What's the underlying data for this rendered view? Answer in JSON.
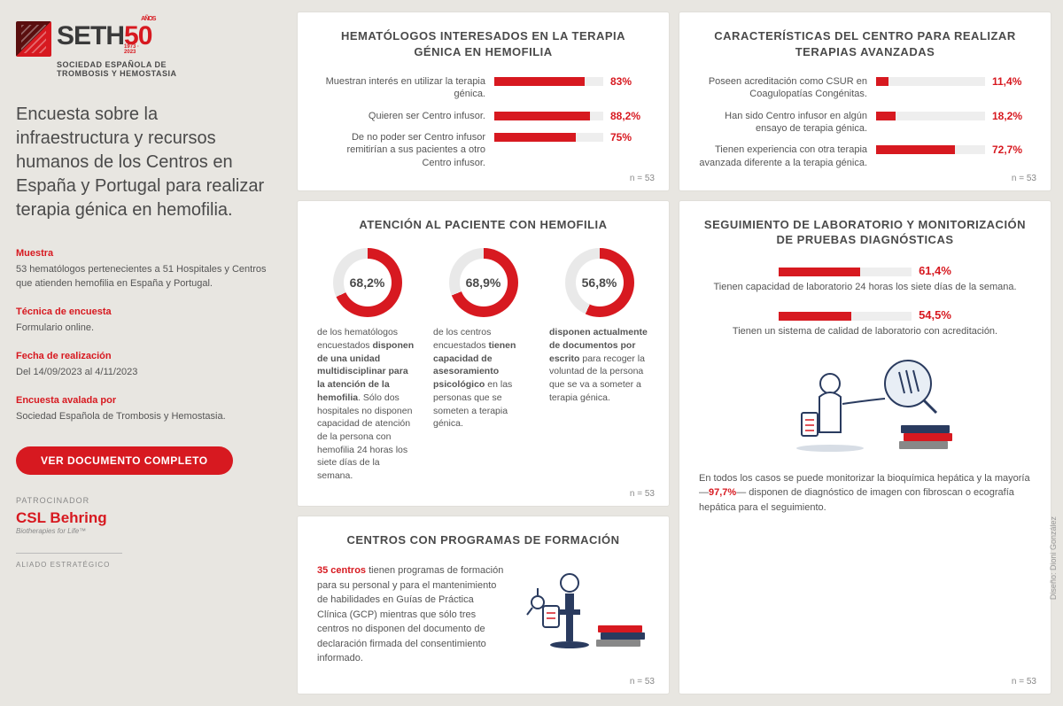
{
  "brand": {
    "name": "SETH",
    "fifty": "50",
    "anos": "AÑOS",
    "years": "1973 · 2023",
    "subtitle": "SOCIEDAD ESPAÑOLA DE\nTROMBOSIS Y HEMOSTASIA"
  },
  "sidebar": {
    "title": "Encuesta sobre la infraestructura y recursos humanos de los Centros en España y Portugal para realizar terapia génica en hemofilia.",
    "meta": [
      {
        "label": "Muestra",
        "value": "53 hematólogos pertenecientes a 51 Hospitales y Centros que atienden hemofilia en España y Portugal."
      },
      {
        "label": "Técnica de encuesta",
        "value": "Formulario online."
      },
      {
        "label": "Fecha de realización",
        "value": "Del 14/09/2023 al 4/11/2023"
      },
      {
        "label": "Encuesta avalada por",
        "value": "Sociedad Española de Trombosis y Hemostasia."
      }
    ],
    "cta": "VER DOCUMENTO COMPLETO",
    "sponsor_label": "PATROCINADOR",
    "sponsor_name": "CSL Behring",
    "sponsor_tag": "Biotherapies for Life™",
    "ally_label": "ALIADO ESTRATÉGICO"
  },
  "panels": {
    "hematologos": {
      "title": "HEMATÓLOGOS INTERESADOS EN LA TERAPIA GÉNICA EN HEMOFILIA",
      "n": "n = 53",
      "bars": [
        {
          "label": "Muestran interés en utilizar la terapia génica.",
          "pct_label": "83%",
          "pct": 83
        },
        {
          "label": "Quieren ser Centro infusor.",
          "pct_label": "88,2%",
          "pct": 88.2
        },
        {
          "label": "De no poder ser Centro infusor remitirían a sus pacientes a otro Centro infusor.",
          "pct_label": "75%",
          "pct": 75
        }
      ],
      "bar_color": "#d71920",
      "track_color": "#eeeeee"
    },
    "caracteristicas": {
      "title": "CARACTERÍSTICAS DEL CENTRO PARA REALIZAR TERAPIAS AVANZADAS",
      "n": "n = 53",
      "bars": [
        {
          "label": "Poseen acreditación como CSUR en Coagulopatías Congénitas.",
          "pct_label": "11,4%",
          "pct": 11.4
        },
        {
          "label": "Han sido Centro infusor en algún ensayo de terapia génica.",
          "pct_label": "18,2%",
          "pct": 18.2
        },
        {
          "label": "Tienen experiencia con otra terapia avanzada diferente a la terapia génica.",
          "pct_label": "72,7%",
          "pct": 72.7
        }
      ],
      "bar_color": "#d71920",
      "track_color": "#eeeeee"
    },
    "atencion": {
      "title": "ATENCIÓN AL PACIENTE CON HEMOFILIA",
      "n": "n = 53",
      "donut_color": "#d71920",
      "donut_track": "#e9e9e9",
      "items": [
        {
          "pct_label": "68,2%",
          "pct": 68.2,
          "desc_pre": "de los hematólogos encuestados ",
          "desc_bold": "disponen de una unidad multidisciplinar para la atención de la hemofilia",
          "desc_post": ". Sólo dos hospitales no disponen capacidad de atención de la persona con hemofilia 24 horas los siete días de la semana."
        },
        {
          "pct_label": "68,9%",
          "pct": 68.9,
          "desc_pre": "de los centros encuestados ",
          "desc_bold": "tienen capacidad de asesoramiento psicológico",
          "desc_post": " en las personas que se someten a terapia génica."
        },
        {
          "pct_label": "56,8%",
          "pct": 56.8,
          "desc_pre": "",
          "desc_bold": "disponen actualmente de documentos por escrito",
          "desc_post": " para recoger la voluntad de la persona que se va a someter a terapia génica."
        }
      ]
    },
    "formacion": {
      "title": "CENTROS CON PROGRAMAS DE FORMACIÓN",
      "n": "n = 53",
      "highlight": "35 centros",
      "body": " tienen programas de formación para su personal y para el mantenimiento de habilidades en Guías de Práctica Clínica (GCP) mientras que sólo tres centros no disponen del documento de declaración firmada del consentimiento informado."
    },
    "seguimiento": {
      "title": "SEGUIMIENTO DE LABORATORIO Y MONITORIZACIÓN DE PRUEBAS DIAGNÓSTICAS",
      "n": "n = 53",
      "bars": [
        {
          "pct_label": "61,4%",
          "pct": 61.4,
          "desc": "Tienen capacidad de laboratorio 24 horas los siete días de la semana."
        },
        {
          "pct_label": "54,5%",
          "pct": 54.5,
          "desc": "Tienen un sistema de calidad de laboratorio con acreditación."
        }
      ],
      "footer_pre": "En todos los casos se puede monitorizar la bioquímica hepática y la mayoría —",
      "footer_hl": "97,7%",
      "footer_post": "— disponen de diagnóstico de imagen con fibroscan o ecografía hepática para el seguimiento."
    }
  },
  "credit": "Diseño: Dioni González"
}
